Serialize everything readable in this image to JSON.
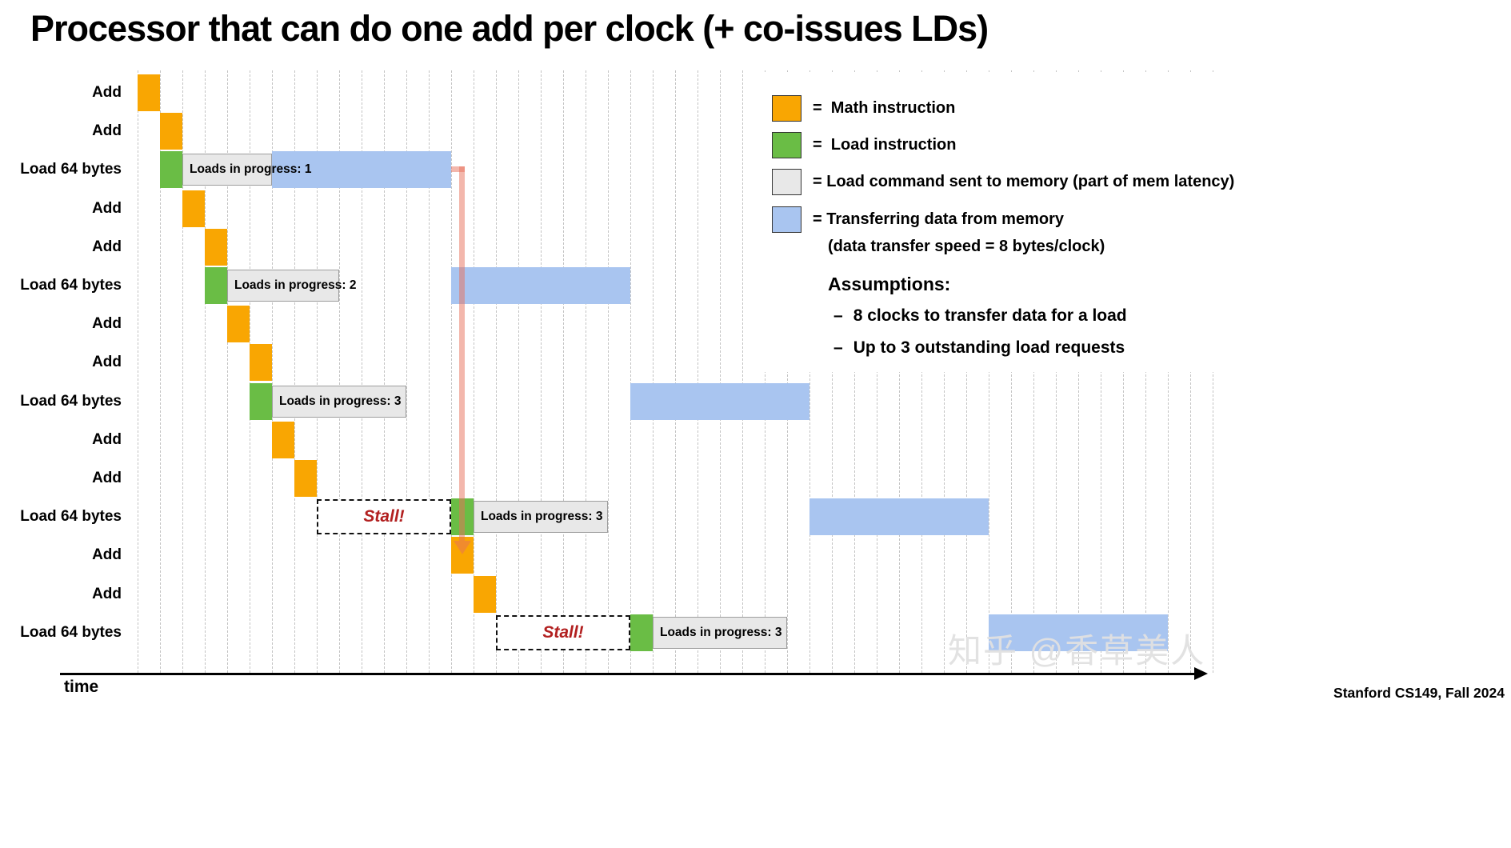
{
  "title": "Processor that can do one add per clock (+ co-issues LDs)",
  "colors": {
    "math": "#F9A602",
    "load": "#6ABD45",
    "transfer": "#A9C5F0",
    "cmd_bg": "#E8E8E8",
    "cmd_border": "#9E9E9E",
    "stall_text": "#B22020",
    "arrow": "#E8705A",
    "grid": "#C3C3C3"
  },
  "legend": {
    "items": [
      {
        "key": "math",
        "label": "=  Math instruction"
      },
      {
        "key": "load",
        "label": "=  Load instruction"
      },
      {
        "key": "cmd",
        "label": "= Load command sent to memory (part of mem latency)"
      },
      {
        "key": "transfer",
        "label": "= Transferring data from memory",
        "label2": "(data transfer speed = 8 bytes/clock)"
      }
    ]
  },
  "assumptions": {
    "heading": "Assumptions:",
    "bullet": "–",
    "items": [
      "8 clocks to transfer data for a load",
      "Up to 3 outstanding load requests"
    ]
  },
  "axis": {
    "label": "time"
  },
  "footer": {
    "credit": "Stanford CS149, Fall 2024"
  },
  "watermark": "知乎 @香草美人",
  "chart_data": {
    "type": "gantt-timeline",
    "clocks": 48,
    "grid": true,
    "units": "1 column = 1 clock; transfer blocks = 8 clocks (64 bytes at 8 bytes/clock)",
    "rows": [
      {
        "label": "Add",
        "blocks": [
          {
            "t": "math",
            "c": 0,
            "w": 1
          }
        ]
      },
      {
        "label": "Add",
        "blocks": [
          {
            "t": "math",
            "c": 1,
            "w": 1
          }
        ]
      },
      {
        "label": "Load 64 bytes",
        "blocks": [
          {
            "t": "load",
            "c": 1,
            "w": 1
          },
          {
            "t": "cmd",
            "c": 2,
            "w": 4,
            "text": "Loads in progress: 1"
          },
          {
            "t": "xfer",
            "c": 6,
            "w": 8
          }
        ]
      },
      {
        "label": "Add",
        "blocks": [
          {
            "t": "math",
            "c": 2,
            "w": 1
          }
        ]
      },
      {
        "label": "Add",
        "blocks": [
          {
            "t": "math",
            "c": 3,
            "w": 1
          }
        ]
      },
      {
        "label": "Load 64 bytes",
        "blocks": [
          {
            "t": "load",
            "c": 3,
            "w": 1
          },
          {
            "t": "cmd",
            "c": 4,
            "w": 5,
            "text": "Loads in progress: 2"
          },
          {
            "t": "xfer",
            "c": 14,
            "w": 8
          }
        ]
      },
      {
        "label": "Add",
        "blocks": [
          {
            "t": "math",
            "c": 4,
            "w": 1
          }
        ]
      },
      {
        "label": "Add",
        "blocks": [
          {
            "t": "math",
            "c": 5,
            "w": 1
          }
        ]
      },
      {
        "label": "Load 64 bytes",
        "blocks": [
          {
            "t": "load",
            "c": 5,
            "w": 1
          },
          {
            "t": "cmd",
            "c": 6,
            "w": 6,
            "text": "Loads in progress: 3"
          },
          {
            "t": "xfer",
            "c": 22,
            "w": 8
          }
        ]
      },
      {
        "label": "Add",
        "blocks": [
          {
            "t": "math",
            "c": 6,
            "w": 1
          }
        ]
      },
      {
        "label": "Add",
        "blocks": [
          {
            "t": "math",
            "c": 7,
            "w": 1
          }
        ]
      },
      {
        "label": "Load 64 bytes",
        "blocks": [
          {
            "t": "stall",
            "c": 8,
            "w": 6,
            "text": "Stall!"
          },
          {
            "t": "load",
            "c": 14,
            "w": 1
          },
          {
            "t": "cmd",
            "c": 15,
            "w": 6,
            "text": "Loads in progress: 3"
          },
          {
            "t": "xfer",
            "c": 30,
            "w": 8
          }
        ]
      },
      {
        "label": "Add",
        "blocks": [
          {
            "t": "math",
            "c": 14,
            "w": 1
          }
        ]
      },
      {
        "label": "Add",
        "blocks": [
          {
            "t": "math",
            "c": 15,
            "w": 1
          }
        ]
      },
      {
        "label": "Load 64 bytes",
        "blocks": [
          {
            "t": "stall",
            "c": 16,
            "w": 6,
            "text": "Stall!"
          },
          {
            "t": "load",
            "c": 22,
            "w": 1
          },
          {
            "t": "cmd",
            "c": 23,
            "w": 6,
            "text": "Loads in progress: 3"
          },
          {
            "t": "xfer",
            "c": 38,
            "w": 8
          }
        ]
      }
    ],
    "dependency_arrow": {
      "from_row": 2,
      "from_clock": 14,
      "to_row": 12
    }
  }
}
